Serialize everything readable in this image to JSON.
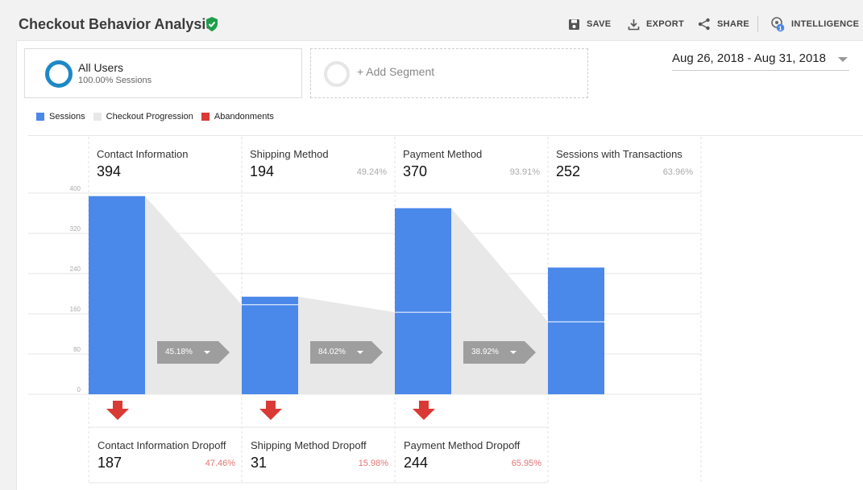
{
  "header": {
    "title": "Checkout Behavior Analysis",
    "save_label": "SAVE",
    "export_label": "EXPORT",
    "share_label": "SHARE",
    "intelligence_label": "INTELLIGENCE",
    "intelligence_badge": "1"
  },
  "segments": {
    "active": {
      "name": "All Users",
      "sub": "100.00% Sessions"
    },
    "add_label": "+ Add Segment"
  },
  "date_range": "Aug 26, 2018 - Aug 31, 2018",
  "legend": {
    "sessions": "Sessions",
    "progression": "Checkout Progression",
    "abandonments": "Abandonments"
  },
  "colors": {
    "sessions": "#4a88ea",
    "progression": "#e8e8e8",
    "abandonments": "#d93a35",
    "conversion_tag": "#9e9e9e"
  },
  "steps": [
    {
      "name": "Contact Information",
      "value": "394",
      "pct": ""
    },
    {
      "name": "Shipping Method",
      "value": "194",
      "pct": "49.24%"
    },
    {
      "name": "Payment Method",
      "value": "370",
      "pct": "93.91%"
    },
    {
      "name": "Sessions with Transactions",
      "value": "252",
      "pct": "63.96%"
    }
  ],
  "conversions": [
    "45.18%",
    "84.02%",
    "38.92%"
  ],
  "dropoffs": [
    {
      "name": "Contact Information Dropoff",
      "value": "187",
      "pct": "47.46%"
    },
    {
      "name": "Shipping Method Dropoff",
      "value": "31",
      "pct": "15.98%"
    },
    {
      "name": "Payment Method Dropoff",
      "value": "244",
      "pct": "65.95%"
    }
  ],
  "chart_data": {
    "type": "bar",
    "categories": [
      "Contact Information",
      "Shipping Method",
      "Payment Method",
      "Sessions with Transactions"
    ],
    "values": [
      394,
      194,
      370,
      252
    ],
    "progression_from_previous": [
      null,
      178,
      163,
      144
    ],
    "ylim": [
      0,
      400
    ],
    "yticks": [
      0,
      80,
      160,
      240,
      320,
      400
    ]
  }
}
